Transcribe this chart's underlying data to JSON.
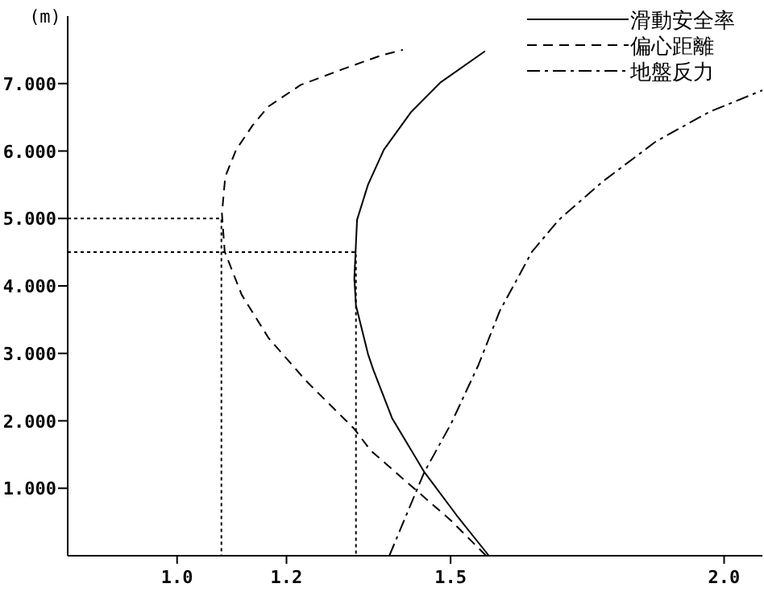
{
  "chart_data": {
    "type": "line",
    "ylabel": "(m)",
    "xlim": [
      0.8,
      2.07
    ],
    "ylim": [
      0,
      8
    ],
    "xticks": [
      {
        "value": 1,
        "label": "1.0"
      },
      {
        "value": 1.2,
        "label": "1.2"
      },
      {
        "value": 1.5,
        "label": "1.5"
      },
      {
        "value": 2,
        "label": "2.0"
      }
    ],
    "yticks": [
      {
        "value": 1,
        "label": "1.000"
      },
      {
        "value": 2,
        "label": "2.000"
      },
      {
        "value": 3,
        "label": "3.000"
      },
      {
        "value": 4,
        "label": "4.000"
      },
      {
        "value": 5,
        "label": "5.000"
      },
      {
        "value": 6,
        "label": "6.000"
      },
      {
        "value": 7,
        "label": "7.000"
      }
    ],
    "grid": false,
    "legend": "top right",
    "series": [
      {
        "name": "滑動安全率",
        "color": "#000000",
        "line_style": "solid",
        "x": [
          1.57,
          1.511,
          1.452,
          1.393,
          1.359,
          1.349,
          1.327,
          1.324,
          1.329,
          1.349,
          1.378,
          1.428,
          1.482,
          1.563
        ],
        "values": [
          0,
          0.6,
          1.24,
          2.04,
          2.75,
          2.99,
          3.71,
          4.11,
          4.98,
          5.5,
          6.02,
          6.58,
          7.02,
          7.48
        ]
      },
      {
        "name": "偏心距離",
        "color": "#000000",
        "line_style": "dashed",
        "x": [
          1.565,
          1.501,
          1.433,
          1.354,
          1.324,
          1.236,
          1.167,
          1.118,
          1.087,
          1.082,
          1.088,
          1.108,
          1.138,
          1.167,
          1.226,
          1.305,
          1.374,
          1.413
        ],
        "values": [
          0,
          0.52,
          1.0,
          1.56,
          1.88,
          2.59,
          3.23,
          3.87,
          4.51,
          5.07,
          5.62,
          6.02,
          6.38,
          6.66,
          6.98,
          7.22,
          7.42,
          7.5
        ]
      },
      {
        "name": "地盤反力",
        "color": "#000000",
        "line_style": "dashdot",
        "x": [
          1.388,
          1.452,
          1.501,
          1.551,
          1.59,
          1.649,
          1.698,
          1.777,
          1.875,
          1.973,
          2.07
        ],
        "values": [
          0,
          1.24,
          1.96,
          2.83,
          3.63,
          4.51,
          4.98,
          5.54,
          6.14,
          6.58,
          6.9
        ]
      },
      {
        "color": "#000000",
        "line_style": "dotted",
        "x": [
          0.8,
          1.081,
          1.081
        ],
        "values": [
          5,
          5,
          0
        ]
      },
      {
        "color": "#000000",
        "line_style": "dotted",
        "x": [
          0.8,
          1.327,
          1.327
        ],
        "values": [
          4.5,
          4.5,
          0
        ]
      }
    ]
  }
}
